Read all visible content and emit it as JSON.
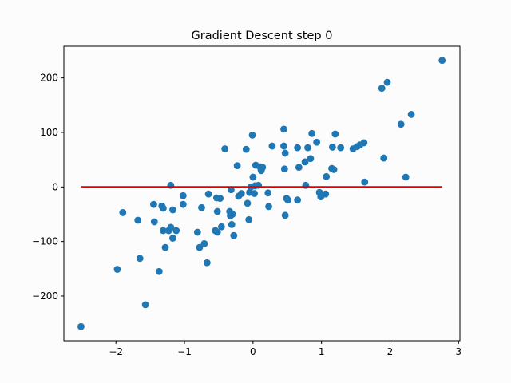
{
  "chart_data": {
    "type": "scatter",
    "title": "Gradient Descent step 0",
    "xlabel": "",
    "ylabel": "",
    "xlim": [
      -2.76,
      3.02
    ],
    "ylim": [
      -282,
      258
    ],
    "xticks": [
      -2,
      -1,
      0,
      1,
      2,
      3
    ],
    "yticks": [
      -200,
      -100,
      0,
      100,
      200
    ],
    "xtick_labels": [
      "−2",
      "−1",
      "0",
      "1",
      "2",
      "3"
    ],
    "ytick_labels": [
      "−200",
      "−100",
      "0",
      "100",
      "200"
    ],
    "grid": false,
    "colors": {
      "points": "#1f77b4",
      "line": "#e00000",
      "background": "#fcfcfc"
    },
    "points": [
      [
        -2.51,
        -256
      ],
      [
        -1.98,
        -151
      ],
      [
        -1.9,
        -47
      ],
      [
        -1.68,
        -61
      ],
      [
        -1.65,
        -131
      ],
      [
        -1.57,
        -216
      ],
      [
        -1.45,
        -32
      ],
      [
        -1.44,
        -64
      ],
      [
        -1.37,
        -155
      ],
      [
        -1.33,
        -35
      ],
      [
        -1.31,
        -39
      ],
      [
        -1.31,
        -80
      ],
      [
        -1.28,
        -111
      ],
      [
        -1.23,
        -80
      ],
      [
        -1.2,
        -74
      ],
      [
        -1.2,
        3
      ],
      [
        -1.17,
        -94
      ],
      [
        -1.17,
        -42
      ],
      [
        -1.12,
        -80
      ],
      [
        -1.02,
        -16
      ],
      [
        -1.02,
        -32
      ],
      [
        -0.81,
        -83
      ],
      [
        -0.78,
        -111
      ],
      [
        -0.75,
        -38
      ],
      [
        -0.71,
        -104
      ],
      [
        -0.67,
        -139
      ],
      [
        -0.65,
        -13
      ],
      [
        -0.55,
        -80
      ],
      [
        -0.53,
        -20
      ],
      [
        -0.52,
        -45
      ],
      [
        -0.52,
        -83
      ],
      [
        -0.48,
        -21
      ],
      [
        -0.46,
        -73
      ],
      [
        -0.41,
        70
      ],
      [
        -0.34,
        -45
      ],
      [
        -0.33,
        -53
      ],
      [
        -0.32,
        -5
      ],
      [
        -0.31,
        -69
      ],
      [
        -0.3,
        -50
      ],
      [
        -0.28,
        -89
      ],
      [
        -0.23,
        39
      ],
      [
        -0.21,
        -17
      ],
      [
        -0.17,
        -12
      ],
      [
        -0.1,
        69
      ],
      [
        -0.08,
        -30
      ],
      [
        -0.06,
        -60
      ],
      [
        -0.05,
        -10
      ],
      [
        -0.03,
        0
      ],
      [
        -0.01,
        95
      ],
      [
        0.0,
        18
      ],
      [
        0.02,
        -12
      ],
      [
        0.03,
        2
      ],
      [
        0.04,
        40
      ],
      [
        0.08,
        3
      ],
      [
        0.1,
        37
      ],
      [
        0.12,
        33
      ],
      [
        0.12,
        30
      ],
      [
        0.14,
        36
      ],
      [
        0.22,
        -11
      ],
      [
        0.23,
        -36
      ],
      [
        0.28,
        75
      ],
      [
        0.45,
        106
      ],
      [
        0.45,
        75
      ],
      [
        0.46,
        33
      ],
      [
        0.47,
        -52
      ],
      [
        0.47,
        62
      ],
      [
        0.49,
        -21
      ],
      [
        0.51,
        -24
      ],
      [
        0.65,
        72
      ],
      [
        0.65,
        -24
      ],
      [
        0.67,
        36
      ],
      [
        0.76,
        46
      ],
      [
        0.77,
        3
      ],
      [
        0.8,
        72
      ],
      [
        0.84,
        52
      ],
      [
        0.86,
        98
      ],
      [
        0.93,
        82
      ],
      [
        0.97,
        -10
      ],
      [
        0.99,
        -18
      ],
      [
        1.01,
        -14
      ],
      [
        1.06,
        -13
      ],
      [
        1.07,
        19
      ],
      [
        1.15,
        34
      ],
      [
        1.16,
        73
      ],
      [
        1.18,
        32
      ],
      [
        1.2,
        97
      ],
      [
        1.28,
        72
      ],
      [
        1.46,
        70
      ],
      [
        1.52,
        74
      ],
      [
        1.56,
        77
      ],
      [
        1.62,
        81
      ],
      [
        1.63,
        9
      ],
      [
        1.88,
        181
      ],
      [
        1.91,
        53
      ],
      [
        1.96,
        192
      ],
      [
        2.16,
        115
      ],
      [
        2.23,
        18
      ],
      [
        2.31,
        133
      ],
      [
        2.76,
        232
      ]
    ],
    "line": {
      "x": [
        -2.51,
        2.76
      ],
      "y": [
        0,
        0
      ]
    }
  }
}
